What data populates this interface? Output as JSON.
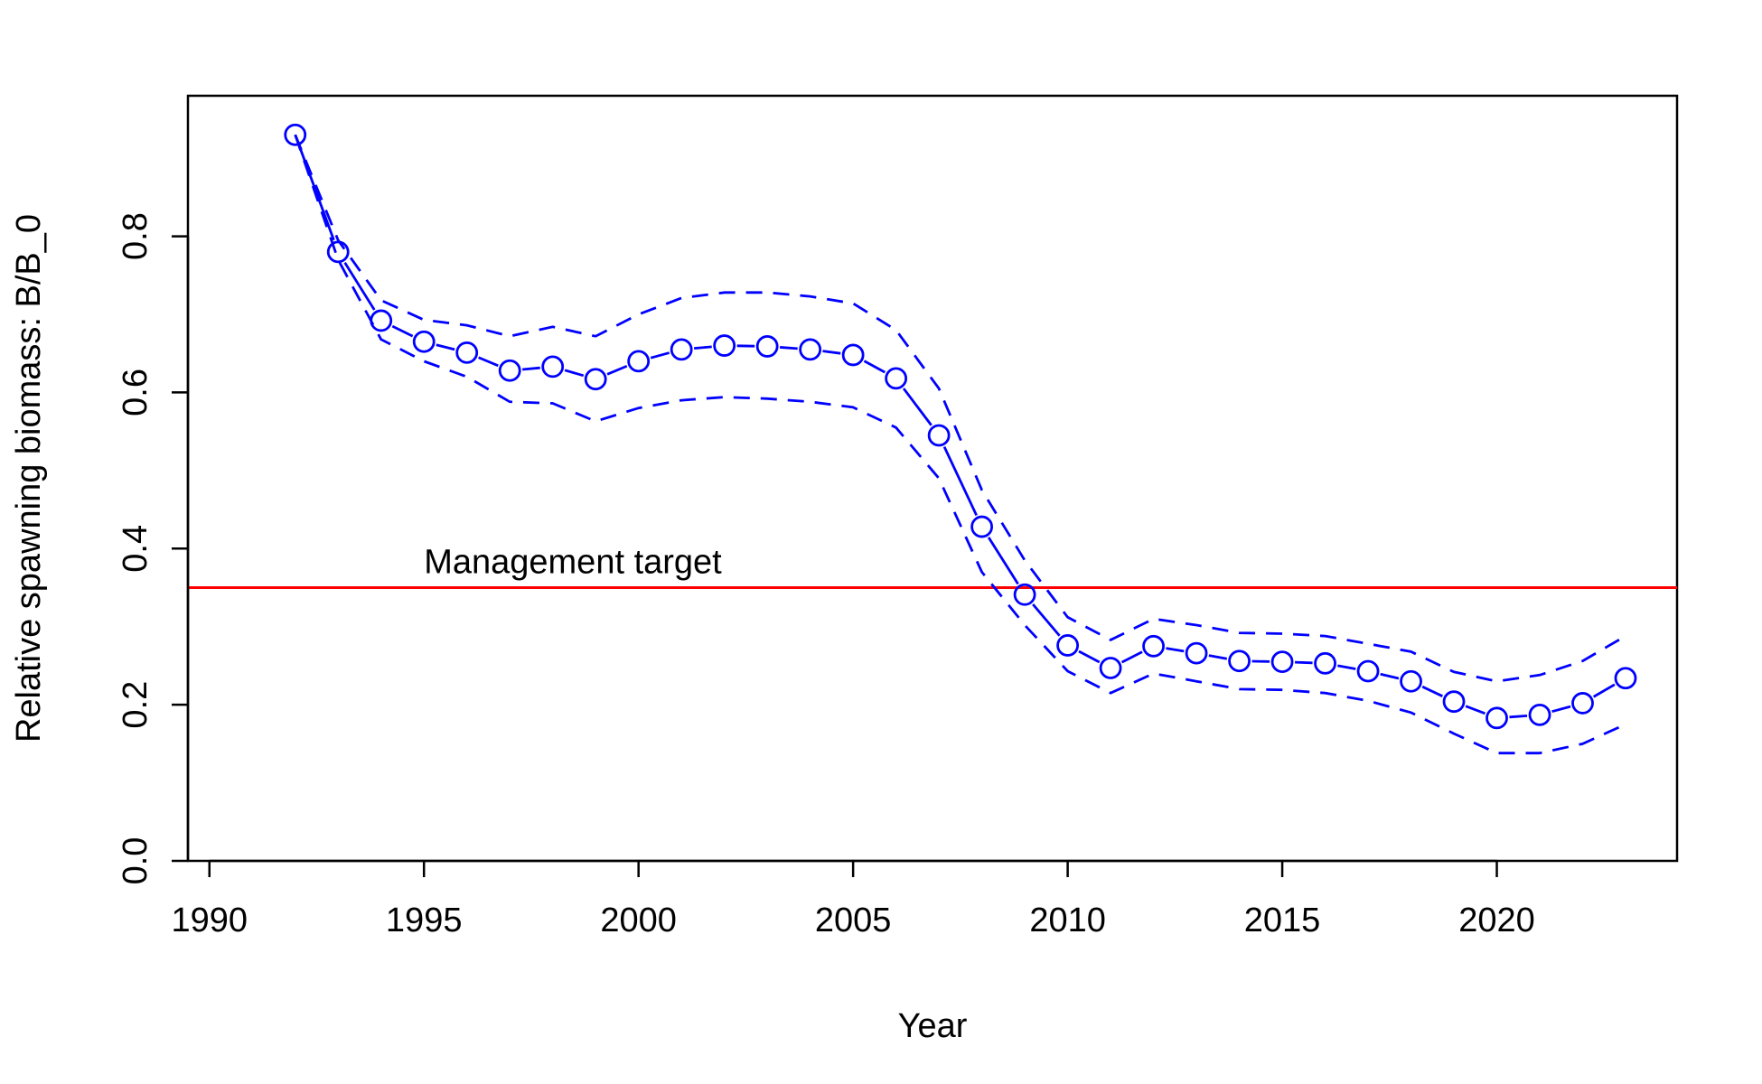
{
  "colors": {
    "series": "#0000ff",
    "target": "#ff0000",
    "axis": "#000000",
    "background": "#ffffff"
  },
  "chart_data": {
    "type": "line",
    "title": "",
    "xlabel": "Year",
    "ylabel": "Relative spawning biomass: B/B_0",
    "xlim": [
      1989.5,
      2024.2
    ],
    "ylim": [
      0.0,
      0.98
    ],
    "grid": false,
    "xticks": [
      1990,
      1995,
      2000,
      2005,
      2010,
      2015,
      2020
    ],
    "xtick_labels": [
      "1990",
      "1995",
      "2000",
      "2005",
      "2010",
      "2015",
      "2020"
    ],
    "yticks": [
      0.0,
      0.2,
      0.4,
      0.6,
      0.8
    ],
    "ytick_labels": [
      "0.0",
      "0.2",
      "0.4",
      "0.6",
      "0.8"
    ],
    "x": [
      1992,
      1993,
      1994,
      1995,
      1996,
      1997,
      1998,
      1999,
      2000,
      2001,
      2002,
      2003,
      2004,
      2005,
      2006,
      2007,
      2008,
      2009,
      2010,
      2011,
      2012,
      2013,
      2014,
      2015,
      2016,
      2017,
      2018,
      2019,
      2020,
      2021,
      2022,
      2023
    ],
    "series": [
      {
        "style": "line-with-circles",
        "values": [
          0.93,
          0.78,
          0.692,
          0.665,
          0.651,
          0.628,
          0.633,
          0.617,
          0.64,
          0.655,
          0.66,
          0.659,
          0.655,
          0.648,
          0.618,
          0.545,
          0.428,
          0.341,
          0.276,
          0.247,
          0.275,
          0.266,
          0.256,
          0.255,
          0.253,
          0.243,
          0.23,
          0.204,
          0.183,
          0.187,
          0.202,
          0.234
        ]
      },
      {
        "style": "dashed-upper",
        "values": [
          0.93,
          0.795,
          0.718,
          0.693,
          0.686,
          0.672,
          0.684,
          0.672,
          0.7,
          0.721,
          0.728,
          0.728,
          0.723,
          0.714,
          0.68,
          0.605,
          0.475,
          0.385,
          0.312,
          0.283,
          0.31,
          0.302,
          0.292,
          0.291,
          0.288,
          0.278,
          0.268,
          0.242,
          0.23,
          0.238,
          0.256,
          0.288
        ]
      },
      {
        "style": "dashed-lower",
        "values": [
          0.93,
          0.77,
          0.668,
          0.64,
          0.62,
          0.588,
          0.586,
          0.563,
          0.58,
          0.59,
          0.594,
          0.592,
          0.588,
          0.581,
          0.555,
          0.49,
          0.37,
          0.302,
          0.243,
          0.215,
          0.24,
          0.23,
          0.22,
          0.219,
          0.215,
          0.205,
          0.19,
          0.163,
          0.138,
          0.138,
          0.15,
          0.175
        ]
      }
    ],
    "reference_line": {
      "y": 0.35,
      "label": "Management target"
    }
  }
}
